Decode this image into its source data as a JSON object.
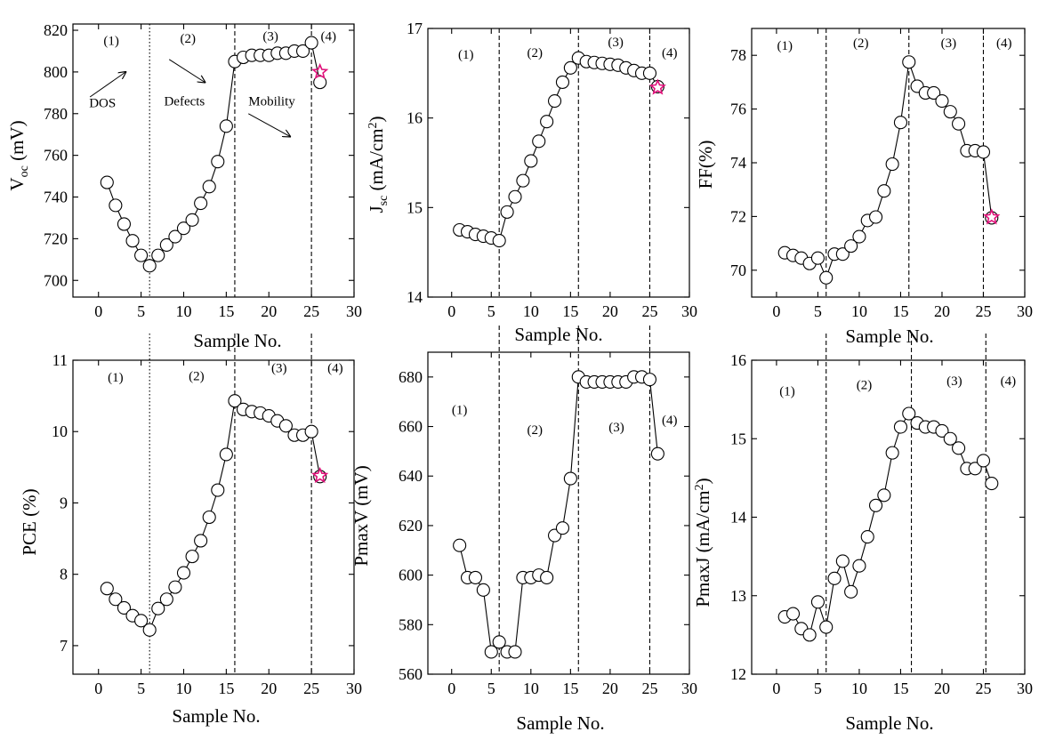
{
  "figure_title": "",
  "colors": {
    "axis": "#000000",
    "marker_edge": "#000000",
    "marker_fill": "#ffffff",
    "star": "#e0107a"
  },
  "chart_data": [
    {
      "type": "scatter",
      "id": "voc",
      "title": "",
      "xlabel": "Sample No.",
      "ylabel": "V",
      "ylabel_sub": "oc",
      "ylabel_suffix": " (mV)",
      "xlim": [
        -3,
        30
      ],
      "xticks": [
        0,
        5,
        10,
        15,
        20,
        25,
        30
      ],
      "ylim": [
        692,
        823
      ],
      "yticks": [
        700,
        720,
        740,
        760,
        780,
        800,
        820
      ],
      "series": [
        {
          "name": "Voc",
          "x": [
            1,
            2,
            3,
            4,
            5,
            6,
            7,
            8,
            9,
            10,
            11,
            12,
            13,
            14,
            15,
            16,
            17,
            18,
            19,
            20,
            21,
            22,
            23,
            24,
            25,
            26
          ],
          "y": [
            747,
            736,
            727,
            719,
            712,
            707,
            712,
            717,
            721,
            725,
            729,
            737,
            745,
            757,
            774,
            805,
            807,
            808,
            808,
            808,
            809,
            809,
            810,
            810,
            814,
            795
          ]
        }
      ],
      "star": {
        "x": 26,
        "y": 800
      },
      "vlines": [
        {
          "x": 6,
          "style": "dotted"
        },
        {
          "x": 16,
          "style": "dashed"
        },
        {
          "x": 25,
          "style": "dashed"
        }
      ],
      "regions": [
        {
          "label": "(1)",
          "x": 1.5,
          "y": 813
        },
        {
          "label": "(2)",
          "x": 10.5,
          "y": 814
        },
        {
          "label": "(3)",
          "x": 20.2,
          "y": 815
        },
        {
          "label": "(4)",
          "x": 27,
          "y": 815
        }
      ],
      "annotations": [
        {
          "text": "DOS",
          "x": -1.1,
          "y": 783
        },
        {
          "text": "Defects",
          "x": 7.7,
          "y": 784
        },
        {
          "text": "Mobility",
          "x": 17.6,
          "y": 784
        }
      ],
      "arrows": [
        {
          "x1": -1,
          "y1": 788,
          "x2": 3.2,
          "y2": 800
        },
        {
          "x1": 8.3,
          "y1": 806,
          "x2": 12.5,
          "y2": 795
        },
        {
          "x1": 17.6,
          "y1": 780,
          "x2": 22.5,
          "y2": 769
        }
      ]
    },
    {
      "type": "scatter",
      "id": "jsc",
      "title": "",
      "xlabel": "Sample No.",
      "ylabel": "J",
      "ylabel_sub": "sc",
      "ylabel_suffix": " (mA/cm",
      "ylabel_sup": "2",
      "ylabel_end": ")",
      "xlim": [
        -3,
        30
      ],
      "xticks": [
        0,
        5,
        10,
        15,
        20,
        25,
        30
      ],
      "ylim": [
        14,
        17
      ],
      "yticks": [
        14,
        15,
        16,
        17
      ],
      "series": [
        {
          "name": "Jsc",
          "x": [
            1,
            2,
            3,
            4,
            5,
            6,
            7,
            8,
            9,
            10,
            11,
            12,
            13,
            14,
            15,
            16,
            17,
            18,
            19,
            20,
            21,
            22,
            23,
            24,
            25,
            26
          ],
          "y": [
            14.75,
            14.73,
            14.7,
            14.68,
            14.66,
            14.63,
            14.95,
            15.12,
            15.3,
            15.52,
            15.74,
            15.96,
            16.19,
            16.4,
            16.56,
            16.67,
            16.63,
            16.62,
            16.61,
            16.6,
            16.59,
            16.56,
            16.53,
            16.5,
            16.5,
            16.35
          ]
        }
      ],
      "star": {
        "x": 26,
        "y": 16.34
      },
      "vlines": [
        {
          "x": 6,
          "style": "dashed"
        },
        {
          "x": 16,
          "style": "dashed"
        },
        {
          "x": 25,
          "style": "dashed"
        }
      ],
      "regions": [
        {
          "label": "(1)",
          "x": 1.8,
          "y": 16.66
        },
        {
          "label": "(2)",
          "x": 10.5,
          "y": 16.68
        },
        {
          "label": "(3)",
          "x": 20.7,
          "y": 16.8
        },
        {
          "label": "(4)",
          "x": 27.5,
          "y": 16.68
        }
      ],
      "annotations": [],
      "arrows": []
    },
    {
      "type": "scatter",
      "id": "ff",
      "title": "",
      "xlabel": "Sample No.",
      "ylabel": "FF(%)",
      "xlim": [
        -3,
        30
      ],
      "xticks": [
        0,
        5,
        10,
        15,
        20,
        25,
        30
      ],
      "ylim": [
        69,
        79
      ],
      "yticks": [
        70,
        72,
        74,
        76,
        78
      ],
      "series": [
        {
          "name": "FF",
          "x": [
            1,
            2,
            3,
            4,
            5,
            6,
            7,
            8,
            9,
            10,
            11,
            12,
            13,
            14,
            15,
            16,
            17,
            18,
            19,
            20,
            21,
            22,
            23,
            24,
            25,
            26
          ],
          "y": [
            70.65,
            70.55,
            70.45,
            70.25,
            70.45,
            69.72,
            70.6,
            70.6,
            70.9,
            71.25,
            71.85,
            71.98,
            72.95,
            73.95,
            75.5,
            77.75,
            76.85,
            76.6,
            76.6,
            76.3,
            75.9,
            75.45,
            74.45,
            74.45,
            74.4,
            71.95
          ]
        }
      ],
      "star": {
        "x": 26,
        "y": 71.97
      },
      "vlines": [
        {
          "x": 6,
          "style": "dashed"
        },
        {
          "x": 16,
          "style": "dashed"
        },
        {
          "x": 25,
          "style": "dashed"
        }
      ],
      "regions": [
        {
          "label": "(1)",
          "x": 1,
          "y": 78.2
        },
        {
          "label": "(2)",
          "x": 10.2,
          "y": 78.3
        },
        {
          "label": "(3)",
          "x": 20.8,
          "y": 78.3
        },
        {
          "label": "(4)",
          "x": 27.5,
          "y": 78.3
        }
      ],
      "annotations": [],
      "arrows": []
    },
    {
      "type": "scatter",
      "id": "pce",
      "title": "",
      "xlabel": "Sample No.",
      "ylabel": "PCE (%)",
      "xlim": [
        -3,
        30
      ],
      "xticks": [
        0,
        5,
        10,
        15,
        20,
        25,
        30
      ],
      "ylim": [
        6.6,
        11
      ],
      "yticks": [
        7,
        8,
        9,
        10,
        11
      ],
      "series": [
        {
          "name": "PCE",
          "x": [
            1,
            2,
            3,
            4,
            5,
            6,
            7,
            8,
            9,
            10,
            11,
            12,
            13,
            14,
            15,
            16,
            17,
            18,
            19,
            20,
            21,
            22,
            23,
            24,
            25,
            26
          ],
          "y": [
            7.8,
            7.65,
            7.53,
            7.42,
            7.35,
            7.22,
            7.52,
            7.65,
            7.82,
            8.02,
            8.25,
            8.47,
            8.8,
            9.18,
            9.68,
            10.43,
            10.31,
            10.28,
            10.26,
            10.22,
            10.15,
            10.08,
            9.95,
            9.95,
            10.0,
            9.37
          ]
        }
      ],
      "star": {
        "x": 26,
        "y": 9.38
      },
      "vlines": [
        {
          "x": 6,
          "style": "dotted"
        },
        {
          "x": 16,
          "style": "dashed"
        },
        {
          "x": 25,
          "style": "dashed"
        }
      ],
      "regions": [
        {
          "label": "(1)",
          "x": 2,
          "y": 10.7
        },
        {
          "label": "(2)",
          "x": 11.5,
          "y": 10.72
        },
        {
          "label": "(3)",
          "x": 21.2,
          "y": 10.83
        },
        {
          "label": "(4)",
          "x": 27.8,
          "y": 10.83
        }
      ],
      "annotations": [],
      "arrows": []
    },
    {
      "type": "scatter",
      "id": "pmaxv",
      "title": "",
      "xlabel": "Sample No.",
      "ylabel": "PmaxV (mV)",
      "xlim": [
        -3,
        30
      ],
      "xticks": [
        0,
        5,
        10,
        15,
        20,
        25,
        30
      ],
      "ylim": [
        560,
        690
      ],
      "yticks": [
        560,
        580,
        600,
        620,
        640,
        660,
        680
      ],
      "series": [
        {
          "name": "PmaxV",
          "x": [
            1,
            2,
            3,
            4,
            5,
            6,
            7,
            8,
            9,
            10,
            11,
            12,
            13,
            14,
            15,
            16,
            17,
            18,
            19,
            20,
            21,
            22,
            23,
            24,
            25,
            26
          ],
          "y": [
            612,
            599,
            599,
            594,
            569,
            573,
            569,
            569,
            599,
            599,
            600,
            599,
            616,
            619,
            639,
            680,
            678,
            678,
            678,
            678,
            678,
            678,
            680,
            680,
            679,
            649
          ]
        }
      ],
      "star": null,
      "vlines": [
        {
          "x": 6,
          "style": "dashed"
        },
        {
          "x": 16,
          "style": "dashed"
        },
        {
          "x": 25,
          "style": "dashed"
        }
      ],
      "regions": [
        {
          "label": "(1)",
          "x": 1,
          "y": 665
        },
        {
          "label": "(2)",
          "x": 10.5,
          "y": 657
        },
        {
          "label": "(3)",
          "x": 20.8,
          "y": 658
        },
        {
          "label": "(4)",
          "x": 27.5,
          "y": 661
        }
      ],
      "annotations": [],
      "arrows": []
    },
    {
      "type": "scatter",
      "id": "pmaxj",
      "title": "",
      "xlabel": "Sample No.",
      "ylabel": "PmaxJ (mA/cm",
      "ylabel_sup": "2",
      "ylabel_end": ")",
      "xlim": [
        -3,
        30
      ],
      "xticks": [
        0,
        5,
        10,
        15,
        20,
        25,
        30
      ],
      "ylim": [
        12,
        16
      ],
      "yticks": [
        12,
        13,
        14,
        15,
        16
      ],
      "series": [
        {
          "name": "PmaxJ",
          "x": [
            1,
            2,
            3,
            4,
            5,
            6,
            7,
            8,
            9,
            10,
            11,
            12,
            13,
            14,
            15,
            16,
            17,
            18,
            19,
            20,
            21,
            22,
            23,
            24,
            25,
            26
          ],
          "y": [
            12.73,
            12.77,
            12.58,
            12.5,
            12.92,
            12.6,
            13.22,
            13.44,
            13.05,
            13.38,
            13.75,
            14.15,
            14.28,
            14.82,
            15.15,
            15.32,
            15.2,
            15.15,
            15.15,
            15.1,
            15.0,
            14.88,
            14.62,
            14.62,
            14.72,
            14.43
          ]
        }
      ],
      "star": null,
      "vlines": [
        {
          "x": 6,
          "style": "dashed"
        },
        {
          "x": 16.3,
          "style": "dashed"
        },
        {
          "x": 25.3,
          "style": "dashed"
        }
      ],
      "regions": [
        {
          "label": "(1)",
          "x": 1.3,
          "y": 15.55
        },
        {
          "label": "(2)",
          "x": 10.6,
          "y": 15.63
        },
        {
          "label": "(3)",
          "x": 21.5,
          "y": 15.68
        },
        {
          "label": "(4)",
          "x": 28,
          "y": 15.68
        }
      ],
      "annotations": [],
      "arrows": []
    }
  ]
}
